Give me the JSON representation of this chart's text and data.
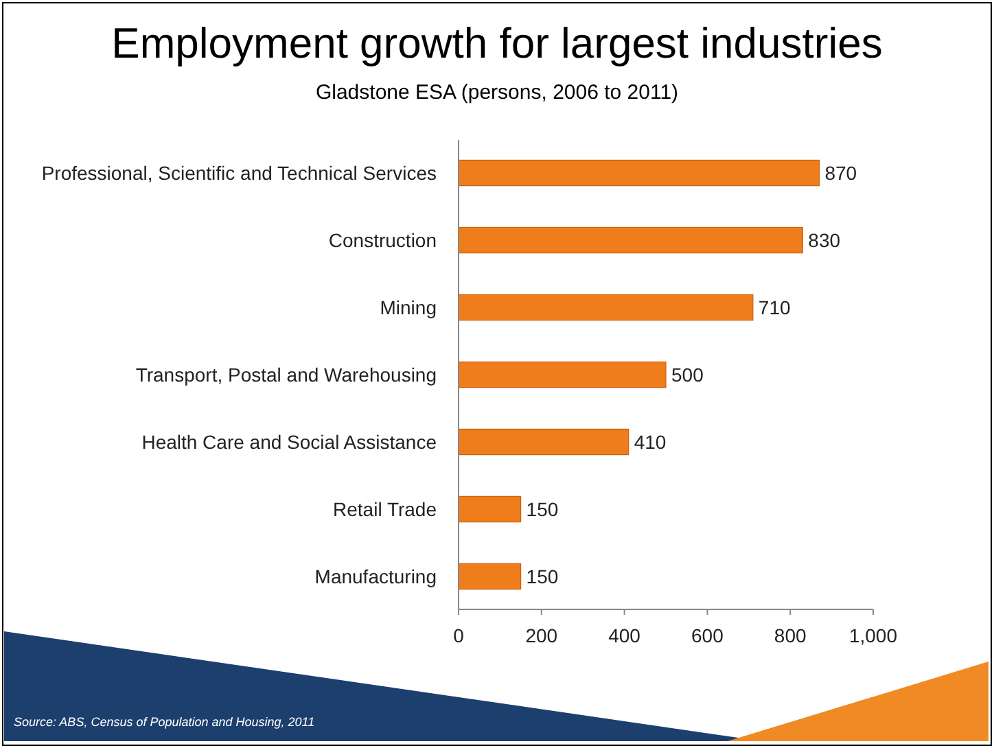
{
  "chart_data": {
    "type": "bar",
    "orientation": "horizontal",
    "title": "Employment growth for largest industries",
    "subtitle": "Gladstone ESA (persons, 2006 to 2011)",
    "categories": [
      "Professional, Scientific and Technical Services",
      "Construction",
      "Mining",
      "Transport, Postal and Warehousing",
      "Health Care and Social Assistance",
      "Retail Trade",
      "Manufacturing"
    ],
    "values": [
      870,
      830,
      710,
      500,
      410,
      150,
      150
    ],
    "color": "#f07d1c",
    "data_labels": true,
    "xlim": [
      0,
      1000
    ],
    "xticks": [
      0,
      200,
      400,
      600,
      800,
      {
        "value": 1000,
        "label": "1,000"
      }
    ],
    "grid": false,
    "annotations": [
      "Source:  ABS, Census of Population and Housing, 2011"
    ]
  }
}
